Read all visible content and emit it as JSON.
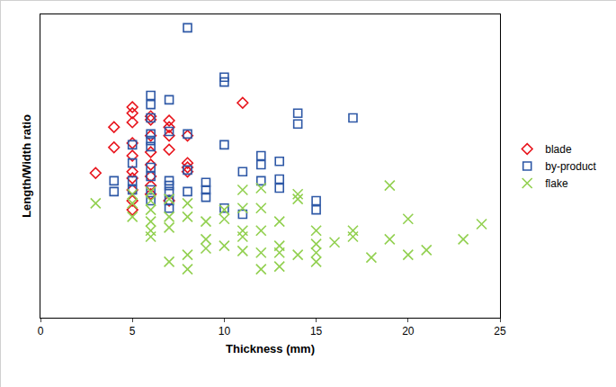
{
  "chart_data": {
    "type": "scatter",
    "x_label": "Thickness (mm)",
    "y_label": "Length/Width ratio",
    "xlim": [
      0,
      25
    ],
    "xticks": [
      0,
      5,
      10,
      15,
      20,
      25
    ],
    "ylim": [
      0,
      7
    ],
    "tick_labels": "x",
    "grid": false,
    "legend": "right",
    "series": [
      {
        "name": "blade",
        "color": "#e8141c",
        "marker": "diamond",
        "x": [
          3,
          4,
          4,
          5,
          5,
          5,
          5,
          5,
          5,
          5,
          5,
          5,
          5,
          6,
          6,
          6,
          6,
          6,
          6,
          6,
          6,
          7,
          7,
          7,
          7,
          7,
          8,
          8,
          8,
          8,
          11
        ],
        "values": [
          3.34,
          4.4,
          3.93,
          4.86,
          4.72,
          4.51,
          4.03,
          3.74,
          3.37,
          3.22,
          2.95,
          2.7,
          2.49,
          4.65,
          4.57,
          4.2,
          3.82,
          3.53,
          3.26,
          3.05,
          2.85,
          4.55,
          4.4,
          4.2,
          3.88,
          2.7,
          4.2,
          3.57,
          3.47,
          3.37,
          4.96
        ]
      },
      {
        "name": "by-product",
        "color": "#2e58a6",
        "marker": "square",
        "x": [
          4,
          4,
          5,
          5,
          5,
          5,
          6,
          6,
          6,
          6,
          6,
          6,
          6,
          6,
          6,
          6,
          7,
          7,
          7,
          7,
          7,
          7,
          7,
          8,
          8,
          8,
          8,
          9,
          9,
          9,
          10,
          10,
          10,
          10,
          11,
          11,
          12,
          12,
          12,
          13,
          13,
          13,
          14,
          14,
          15,
          15,
          17
        ],
        "values": [
          3.16,
          2.91,
          3.99,
          3.57,
          3.16,
          2.95,
          5.13,
          4.92,
          4.61,
          4.24,
          4.09,
          3.95,
          3.47,
          3.26,
          2.95,
          2.7,
          5.03,
          4.3,
          3.16,
          3.05,
          2.91,
          2.7,
          2.53,
          6.69,
          4.24,
          3.41,
          2.91,
          3.12,
          2.95,
          2.78,
          5.55,
          5.44,
          3.99,
          2.53,
          3.37,
          2.39,
          3.74,
          3.53,
          3.16,
          3.61,
          3.2,
          2.99,
          4.72,
          4.47,
          2.7,
          2.49,
          4.61
        ]
      },
      {
        "name": "flake",
        "color": "#92d050",
        "marker": "x",
        "x": [
          3,
          5,
          5,
          5,
          6,
          6,
          6,
          6,
          6,
          6,
          7,
          7,
          7,
          7,
          8,
          8,
          8,
          8,
          9,
          9,
          9,
          10,
          10,
          10,
          11,
          11,
          11,
          11,
          11,
          12,
          12,
          12,
          12,
          12,
          13,
          13,
          13,
          13,
          14,
          14,
          14,
          15,
          15,
          15,
          15,
          16,
          17,
          17,
          18,
          19,
          19,
          20,
          20,
          21,
          23,
          24
        ],
        "values": [
          2.64,
          2.64,
          2.33,
          2.85,
          2.91,
          2.7,
          2.49,
          2.22,
          2.01,
          1.87,
          2.74,
          2.33,
          2.08,
          1.29,
          2.64,
          2.33,
          1.45,
          1.12,
          2.22,
          1.81,
          1.6,
          2.49,
          2.28,
          1.66,
          2.95,
          2.53,
          2.01,
          1.87,
          1.54,
          2.99,
          2.53,
          2.01,
          1.5,
          1.12,
          2.22,
          1.66,
          1.5,
          1.18,
          2.85,
          2.74,
          1.45,
          2.01,
          1.7,
          1.5,
          1.29,
          1.74,
          2.01,
          1.87,
          1.39,
          3.05,
          1.81,
          2.28,
          1.45,
          1.56,
          1.81,
          2.16
        ]
      }
    ]
  }
}
